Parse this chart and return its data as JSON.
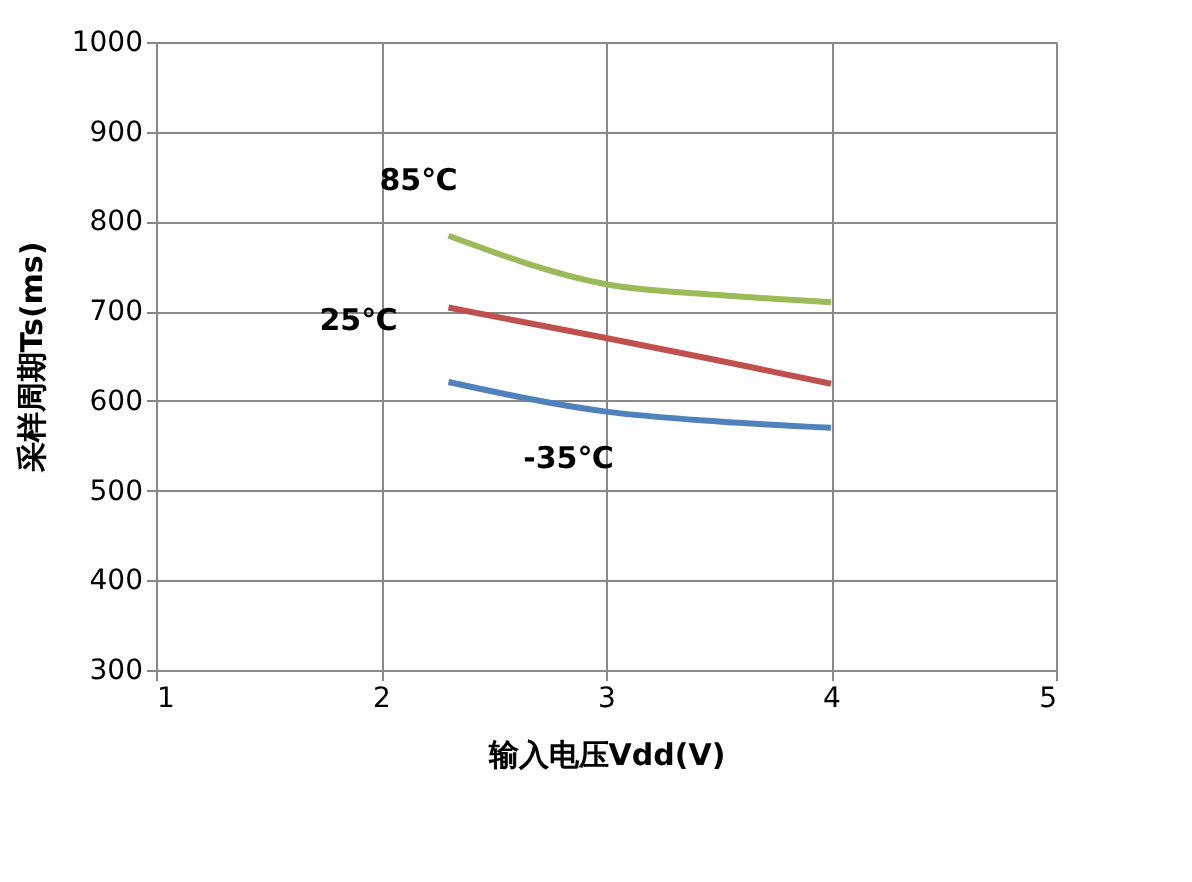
{
  "chart_data": {
    "type": "line",
    "xlabel": "输入电压Vdd(V)",
    "ylabel": "采样周期Ts(ms)",
    "x": [
      2.3,
      3,
      3.5,
      4
    ],
    "series": [
      {
        "name": "85℃",
        "color": "#9bbb59",
        "values": [
          784,
          730,
          718,
          710
        ]
      },
      {
        "name": "25℃",
        "color": "#c0504d",
        "values": [
          704,
          670,
          645,
          619
        ]
      },
      {
        "name": "-35℃",
        "color": "#4f81bd",
        "values": [
          621,
          588,
          577,
          570
        ]
      }
    ],
    "xlim": [
      1,
      5
    ],
    "xticks": [
      1,
      2,
      3,
      4,
      5
    ],
    "ylim": [
      300,
      1000
    ],
    "yticks": [
      300,
      400,
      500,
      600,
      700,
      800,
      900,
      1000
    ],
    "grid": true,
    "legend": false,
    "marker": "none",
    "line_style": "solid"
  }
}
